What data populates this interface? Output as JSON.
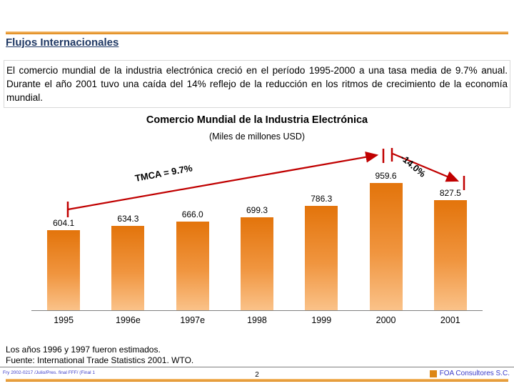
{
  "slide": {
    "title": "Flujos Internacionales",
    "body": "El comercio mundial de la industria electrónica creció en el período 1995-2000 a una tasa media de 9.7% anual. Durante el año 2001 tuvo una caída del 14% reflejo de la reducción en los ritmos de crecimiento de la economía mundial."
  },
  "chart_data": {
    "type": "bar",
    "title": "Comercio Mundial de la Industria Electrónica",
    "subtitle": "(Miles de millones USD)",
    "categories": [
      "1995",
      "1996e",
      "1997e",
      "1998",
      "1999",
      "2000",
      "2001"
    ],
    "values": [
      604.1,
      634.3,
      666.0,
      699.3,
      786.3,
      959.6,
      827.5
    ],
    "value_labels": [
      "604.1",
      "634.3",
      "666.0",
      "699.3",
      "786.3",
      "959.6",
      "827.5"
    ],
    "ylim": [
      0,
      1000
    ],
    "grid": false,
    "legend": "none",
    "annotations": [
      {
        "type": "trend-arrow",
        "label": "TMCA = 9.7%",
        "span": [
          "1995",
          "2000"
        ]
      },
      {
        "type": "decline-arrow",
        "label": "-14.0%",
        "span": [
          "2000",
          "2001"
        ]
      }
    ]
  },
  "footnotes": {
    "line1": "Los años 1996 y 1997 fueron estimados.",
    "line2": "Fuente:  International Trade Statistics 2001. WTO."
  },
  "footer": {
    "left": "Fry 2002-0217 /Julio/Pres. final FFF/ (Final 1",
    "page": "2",
    "company": "FOA Consultores S.C."
  },
  "colors": {
    "orange_light": "#F6BE72",
    "orange_dark": "#DD8614",
    "bar_top": "#E3740B",
    "bar_mid": "#F0953F",
    "bar_bottom": "#FAC289",
    "annotation_red": "#C00000",
    "title_navy": "#1F3864",
    "footer_blue": "#3A3AC8"
  }
}
